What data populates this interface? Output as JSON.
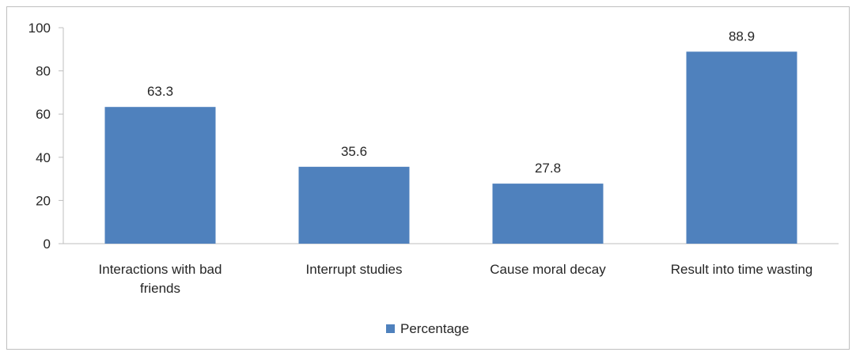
{
  "chart_data": {
    "type": "bar",
    "categories": [
      [
        "Interactions with bad",
        "friends"
      ],
      [
        "Interrupt studies"
      ],
      [
        "Cause moral decay"
      ],
      [
        "Result into time wasting"
      ]
    ],
    "series": [
      {
        "name": "Percentage",
        "values": [
          63.3,
          35.6,
          27.8,
          88.9
        ],
        "color": "#4f81bd"
      }
    ],
    "data_labels": [
      "63.3",
      "35.6",
      "27.8",
      "88.9"
    ],
    "y_ticks": [
      0,
      20,
      40,
      60,
      80,
      100
    ],
    "ylim": [
      0,
      100
    ],
    "title": "",
    "xlabel": "",
    "ylabel": "",
    "grid": false,
    "legend_position": "bottom",
    "axis_color": "#bfbfbf"
  }
}
